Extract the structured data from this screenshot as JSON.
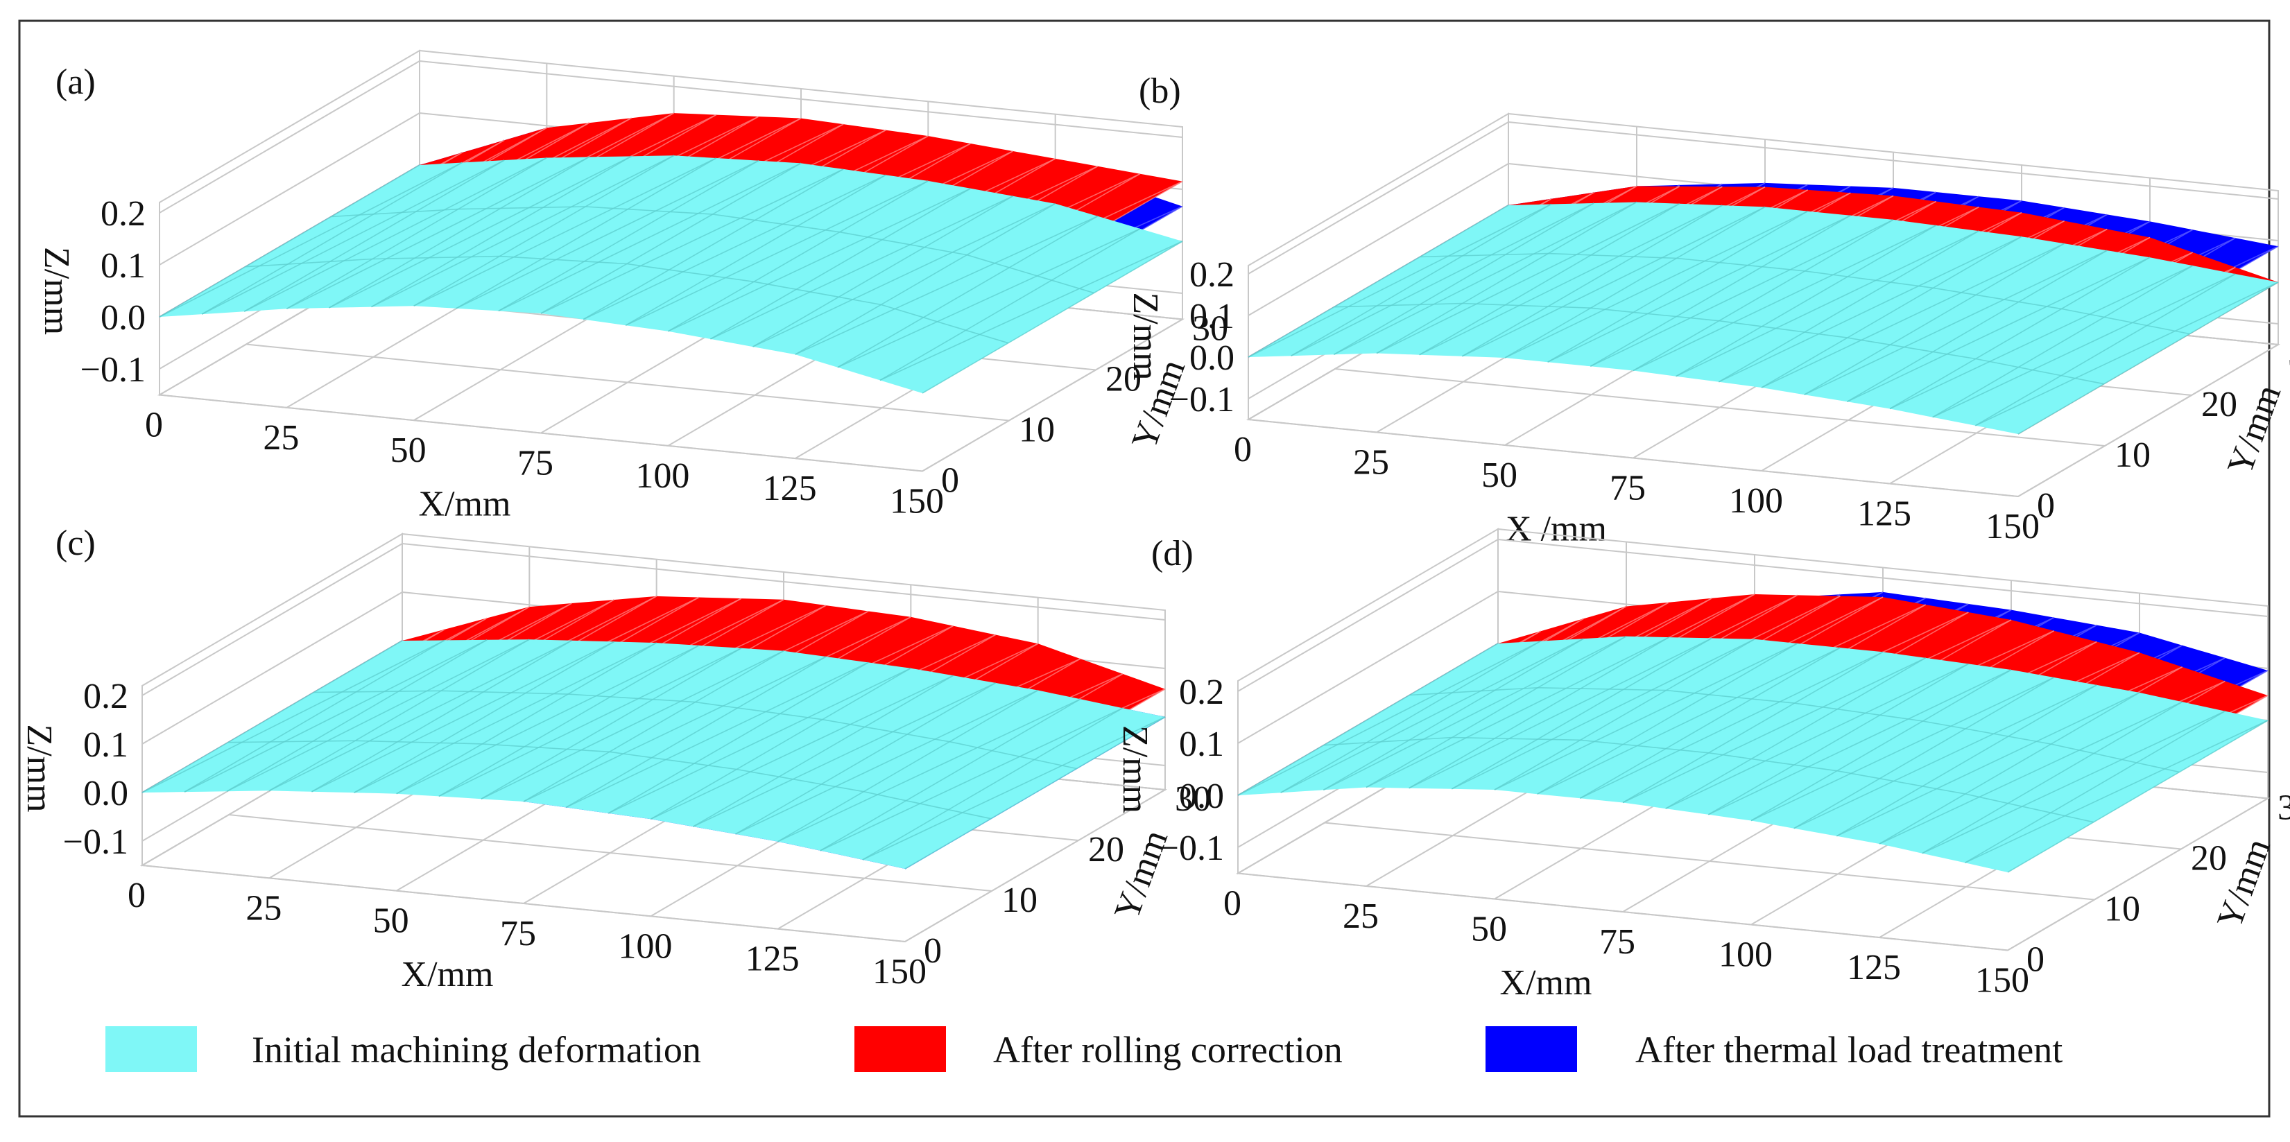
{
  "chart_data": {
    "type": "surface3d",
    "axis_labels": {
      "x": "X/mm",
      "x_alt": "X /mm",
      "y": "Y/mm",
      "z": "Z/mm"
    },
    "x_ticks": [
      "0",
      "25",
      "50",
      "75",
      "100",
      "125",
      "150"
    ],
    "y_ticks": [
      "0",
      "10",
      "20",
      "30"
    ],
    "z_ticks": [
      "0.2",
      "0.1",
      "0.0",
      "−0.1"
    ],
    "xlim": [
      0,
      150
    ],
    "ylim": [
      0,
      30
    ],
    "zlim": [
      -0.15,
      0.22
    ],
    "x": [
      0,
      25,
      50,
      75,
      100,
      125,
      150
    ],
    "legend": {
      "position": "bottom",
      "items": [
        {
          "label": "Initial machining deformation",
          "color": "#7ff7f7"
        },
        {
          "label": "After rolling correction",
          "color": "#ff0000"
        },
        {
          "label": "After thermal load treatment",
          "color": "#0000ff"
        }
      ]
    },
    "panels": [
      {
        "id": "a",
        "label": "(a)",
        "xlabel": "X/mm",
        "series": [
          {
            "name": "Initial machining deformation",
            "z": [
              0.0,
              0.04,
              0.07,
              0.08,
              0.07,
              0.05,
              0.0
            ]
          },
          {
            "name": "After rolling correction",
            "z": [
              0.0,
              0.1,
              0.155,
              0.17,
              0.16,
              0.14,
              0.12
            ]
          },
          {
            "name": "After thermal load treatment",
            "z": [
              0.0,
              0.1,
              0.15,
              0.165,
              0.15,
              0.13,
              0.07
            ]
          }
        ]
      },
      {
        "id": "b",
        "label": "(b)",
        "xlabel": "X /mm",
        "series": [
          {
            "name": "Initial machining deformation",
            "z": [
              0.0,
              0.04,
              0.06,
              0.06,
              0.05,
              0.03,
              0.0
            ]
          },
          {
            "name": "After rolling correction",
            "z": [
              0.0,
              0.08,
              0.11,
              0.12,
              0.11,
              0.08,
              0.0
            ]
          },
          {
            "name": "After thermal load treatment",
            "z": [
              0.0,
              0.08,
              0.12,
              0.14,
              0.14,
              0.12,
              0.09
            ]
          }
        ]
      },
      {
        "id": "c",
        "label": "(c)",
        "xlabel": "X/mm",
        "series": [
          {
            "name": "Initial machining deformation",
            "z": [
              0.0,
              0.03,
              0.05,
              0.06,
              0.05,
              0.03,
              0.0
            ]
          },
          {
            "name": "After rolling correction",
            "z": [
              0.0,
              0.1,
              0.15,
              0.17,
              0.16,
              0.13,
              0.06
            ]
          },
          {
            "name": "After thermal load treatment",
            "z": [
              0.0,
              0.06,
              0.07,
              0.06,
              0.05,
              0.03,
              0.0
            ]
          }
        ]
      },
      {
        "id": "d",
        "label": "(d)",
        "xlabel": "X/mm",
        "series": [
          {
            "name": "Initial machining deformation",
            "z": [
              0.0,
              0.04,
              0.06,
              0.06,
              0.05,
              0.03,
              0.0
            ]
          },
          {
            "name": "After rolling correction",
            "z": [
              0.0,
              0.1,
              0.15,
              0.17,
              0.15,
              0.11,
              0.05
            ]
          },
          {
            "name": "After thermal load treatment",
            "z": [
              0.0,
              0.08,
              0.14,
              0.18,
              0.17,
              0.15,
              0.1
            ]
          }
        ]
      }
    ]
  }
}
